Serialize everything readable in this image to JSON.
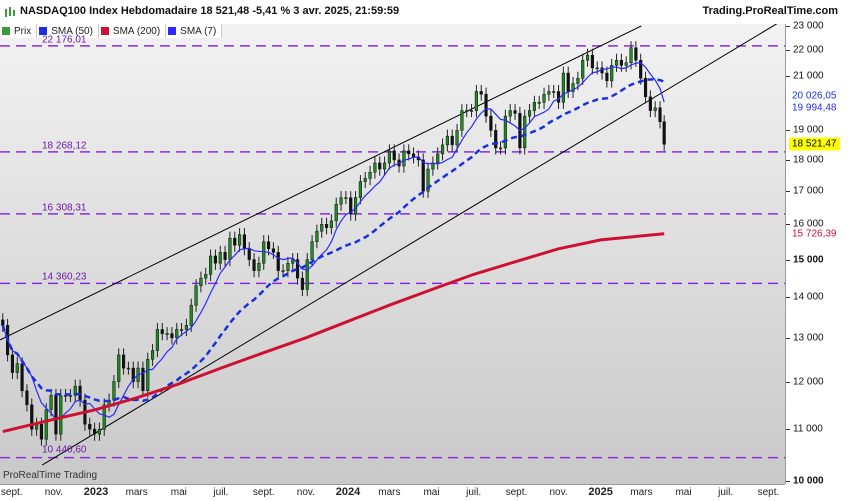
{
  "header": {
    "title": "NASDAQ100 Index Hebdomadaire 18 521,48 -5,41 % 3 avr. 2025, 21:59:59",
    "brand": "Trading.ProRealTime.com",
    "watermark": "ProRealTime Trading"
  },
  "colors": {
    "sma50": "#1a2fe0",
    "sma200": "#cc1133",
    "sma7": "#2a2aff",
    "level": "#8a2be2",
    "channel": "#000000",
    "candle_up": "#1f8a1f",
    "candle_down": "#111111"
  },
  "chart_data": {
    "type": "candlestick",
    "title": "NASDAQ100 Index Hebdomadaire 18 521,48 -5,41 % 3 avr. 2025, 21:59:59",
    "legend": [
      {
        "name": "Prix",
        "color": "#3a9a3a"
      },
      {
        "name": "SMA (50)",
        "color": "#1a2fe0"
      },
      {
        "name": "SMA (200)",
        "color": "#cc1133"
      },
      {
        "name": "SMA (7)",
        "color": "#2a2aff"
      }
    ],
    "legend_position": "top-left",
    "x_ticks": [
      {
        "label": "sept.",
        "date": "2022-09-01"
      },
      {
        "label": "nov.",
        "date": "2022-11-01"
      },
      {
        "label": "2023",
        "date": "2023-01-01",
        "year": true
      },
      {
        "label": "mars",
        "date": "2023-03-01"
      },
      {
        "label": "mai",
        "date": "2023-05-01"
      },
      {
        "label": "juil.",
        "date": "2023-07-01"
      },
      {
        "label": "sept.",
        "date": "2023-09-01"
      },
      {
        "label": "nov.",
        "date": "2023-11-01"
      },
      {
        "label": "2024",
        "date": "2024-01-01",
        "year": true
      },
      {
        "label": "mars",
        "date": "2024-03-01"
      },
      {
        "label": "mai",
        "date": "2024-05-01"
      },
      {
        "label": "juil.",
        "date": "2024-07-01"
      },
      {
        "label": "sept.",
        "date": "2024-09-01"
      },
      {
        "label": "nov.",
        "date": "2024-11-01"
      },
      {
        "label": "2025",
        "date": "2025-01-01",
        "year": true
      },
      {
        "label": "mars",
        "date": "2025-03-01"
      },
      {
        "label": "mai",
        "date": "2025-05-01"
      },
      {
        "label": "juil.",
        "date": "2025-07-01"
      },
      {
        "label": "sept.",
        "date": "2025-09-01"
      }
    ],
    "y_ticks": [
      {
        "label": "23 000",
        "value": 23000
      },
      {
        "label": "22 000",
        "value": 22000
      },
      {
        "label": "21 000",
        "value": 21000
      },
      {
        "label": "19 000",
        "value": 19000
      },
      {
        "label": "18 000",
        "value": 18000
      },
      {
        "label": "17 000",
        "value": 17000
      },
      {
        "label": "16 000",
        "value": 16000
      },
      {
        "label": "15 000",
        "value": 15000,
        "bold": true
      },
      {
        "label": "14 000",
        "value": 14000
      },
      {
        "label": "13 000",
        "value": 13000
      },
      {
        "label": "12 000",
        "value": 12000
      },
      {
        "label": "11 000",
        "value": 11000
      },
      {
        "label": "10 000",
        "value": 10000,
        "bold": true
      }
    ],
    "x_range": [
      "2022-08-15",
      "2025-09-25"
    ],
    "y_range": [
      9950,
      23080
    ],
    "y_scale": "log",
    "levels": [
      {
        "label": "22 176,01",
        "value": 22176.01
      },
      {
        "label": "18 268,12",
        "value": 18268.12
      },
      {
        "label": "16 308,31",
        "value": 16308.31
      },
      {
        "label": "14 360,23",
        "value": 14360.23
      },
      {
        "label": "10 440,60",
        "value": 10440.6
      }
    ],
    "value_tags": [
      {
        "label": "20 026,05",
        "value": 20026.05,
        "color": "#1a2fe0",
        "bg": "#ffffff"
      },
      {
        "label": "19 994,48",
        "value": 19994.48,
        "color": "#2a2aff",
        "bg": "#ffffff"
      },
      {
        "label": "18 521,47",
        "value": 18521.47,
        "color": "#000000",
        "bg": "#ffff00"
      },
      {
        "label": "15 726,39",
        "value": 15726.39,
        "color": "#cc1133",
        "bg": "#ffffff"
      }
    ],
    "channel_lines": [
      {
        "from": {
          "date": "2022-08-15",
          "value": 12950
        },
        "to": {
          "date": "2025-03-01",
          "value": 23000
        }
      },
      {
        "from": {
          "date": "2022-10-15",
          "value": 10300
        },
        "to": {
          "date": "2025-09-25",
          "value": 23300
        }
      }
    ],
    "close_series": [
      [
        "2022-08-19",
        13300
      ],
      [
        "2022-08-26",
        12600
      ],
      [
        "2022-09-02",
        12200
      ],
      [
        "2022-09-09",
        12400
      ],
      [
        "2022-09-16",
        11800
      ],
      [
        "2022-09-23",
        11500
      ],
      [
        "2022-09-30",
        11000
      ],
      [
        "2022-10-07",
        11100
      ],
      [
        "2022-10-14",
        10800
      ],
      [
        "2022-10-21",
        11400
      ],
      [
        "2022-10-28",
        11700
      ],
      [
        "2022-11-04",
        10900
      ],
      [
        "2022-11-11",
        11700
      ],
      [
        "2022-11-18",
        11700
      ],
      [
        "2022-11-25",
        11700
      ],
      [
        "2022-12-02",
        11900
      ],
      [
        "2022-12-09",
        11600
      ],
      [
        "2022-12-16",
        11100
      ],
      [
        "2022-12-23",
        11000
      ],
      [
        "2022-12-30",
        10900
      ],
      [
        "2023-01-06",
        11000
      ],
      [
        "2023-01-13",
        11500
      ],
      [
        "2023-01-20",
        11600
      ],
      [
        "2023-01-27",
        12000
      ],
      [
        "2023-02-03",
        12600
      ],
      [
        "2023-02-10",
        12300
      ],
      [
        "2023-02-17",
        12300
      ],
      [
        "2023-02-24",
        12000
      ],
      [
        "2023-03-03",
        12300
      ],
      [
        "2023-03-10",
        11800
      ],
      [
        "2023-03-17",
        12500
      ],
      [
        "2023-03-24",
        12700
      ],
      [
        "2023-03-31",
        13200
      ],
      [
        "2023-04-07",
        13100
      ],
      [
        "2023-04-14",
        13100
      ],
      [
        "2023-04-21",
        13000
      ],
      [
        "2023-04-28",
        13200
      ],
      [
        "2023-05-05",
        13200
      ],
      [
        "2023-05-12",
        13300
      ],
      [
        "2023-05-19",
        13800
      ],
      [
        "2023-05-26",
        14300
      ],
      [
        "2023-06-02",
        14500
      ],
      [
        "2023-06-09",
        14600
      ],
      [
        "2023-06-16",
        15100
      ],
      [
        "2023-06-23",
        14900
      ],
      [
        "2023-06-30",
        15200
      ],
      [
        "2023-07-07",
        15000
      ],
      [
        "2023-07-14",
        15600
      ],
      [
        "2023-07-21",
        15400
      ],
      [
        "2023-07-28",
        15700
      ],
      [
        "2023-08-04",
        15300
      ],
      [
        "2023-08-11",
        15000
      ],
      [
        "2023-08-18",
        14700
      ],
      [
        "2023-08-25",
        14900
      ],
      [
        "2023-09-01",
        15500
      ],
      [
        "2023-09-08",
        15300
      ],
      [
        "2023-09-15",
        15200
      ],
      [
        "2023-09-22",
        14700
      ],
      [
        "2023-09-29",
        14700
      ],
      [
        "2023-10-06",
        14900
      ],
      [
        "2023-10-13",
        15000
      ],
      [
        "2023-10-20",
        14500
      ],
      [
        "2023-10-27",
        14200
      ],
      [
        "2023-11-03",
        15000
      ],
      [
        "2023-11-10",
        15500
      ],
      [
        "2023-11-17",
        15800
      ],
      [
        "2023-11-24",
        16000
      ],
      [
        "2023-12-01",
        15900
      ],
      [
        "2023-12-08",
        16100
      ],
      [
        "2023-12-15",
        16600
      ],
      [
        "2023-12-22",
        16800
      ],
      [
        "2023-12-29",
        16800
      ],
      [
        "2024-01-05",
        16300
      ],
      [
        "2024-01-12",
        16800
      ],
      [
        "2024-01-19",
        17300
      ],
      [
        "2024-01-26",
        17400
      ],
      [
        "2024-02-02",
        17600
      ],
      [
        "2024-02-09",
        17900
      ],
      [
        "2024-02-16",
        17700
      ],
      [
        "2024-02-23",
        17900
      ],
      [
        "2024-03-01",
        18300
      ],
      [
        "2024-03-08",
        18000
      ],
      [
        "2024-03-15",
        17800
      ],
      [
        "2024-03-22",
        18300
      ],
      [
        "2024-03-29",
        18200
      ],
      [
        "2024-04-05",
        18100
      ],
      [
        "2024-04-12",
        18000
      ],
      [
        "2024-04-19",
        17000
      ],
      [
        "2024-04-26",
        17700
      ],
      [
        "2024-05-03",
        17900
      ],
      [
        "2024-05-10",
        18200
      ],
      [
        "2024-05-17",
        18500
      ],
      [
        "2024-05-24",
        18800
      ],
      [
        "2024-05-31",
        18500
      ],
      [
        "2024-06-07",
        19000
      ],
      [
        "2024-06-14",
        19700
      ],
      [
        "2024-06-21",
        19700
      ],
      [
        "2024-06-28",
        19700
      ],
      [
        "2024-07-05",
        20400
      ],
      [
        "2024-07-12",
        20300
      ],
      [
        "2024-07-19",
        19500
      ],
      [
        "2024-07-26",
        19000
      ],
      [
        "2024-08-02",
        18400
      ],
      [
        "2024-08-09",
        18400
      ],
      [
        "2024-08-16",
        19500
      ],
      [
        "2024-08-23",
        19700
      ],
      [
        "2024-08-30",
        19600
      ],
      [
        "2024-09-06",
        18400
      ],
      [
        "2024-09-13",
        19500
      ],
      [
        "2024-09-20",
        19700
      ],
      [
        "2024-09-27",
        20000
      ],
      [
        "2024-10-04",
        20000
      ],
      [
        "2024-10-11",
        20300
      ],
      [
        "2024-10-18",
        20400
      ],
      [
        "2024-10-25",
        20400
      ],
      [
        "2024-11-01",
        20000
      ],
      [
        "2024-11-08",
        21100
      ],
      [
        "2024-11-15",
        20400
      ],
      [
        "2024-11-22",
        20700
      ],
      [
        "2024-11-29",
        20900
      ],
      [
        "2024-12-06",
        21600
      ],
      [
        "2024-12-13",
        21800
      ],
      [
        "2024-12-20",
        21300
      ],
      [
        "2024-12-27",
        21300
      ],
      [
        "2025-01-03",
        21100
      ],
      [
        "2025-01-10",
        20800
      ],
      [
        "2025-01-17",
        21400
      ],
      [
        "2025-01-24",
        21600
      ],
      [
        "2025-01-31",
        21400
      ],
      [
        "2025-02-07",
        21500
      ],
      [
        "2025-02-14",
        22100
      ],
      [
        "2025-02-21",
        21600
      ],
      [
        "2025-02-28",
        20900
      ],
      [
        "2025-03-07",
        20200
      ],
      [
        "2025-03-14",
        19700
      ],
      [
        "2025-03-21",
        19800
      ],
      [
        "2025-03-28",
        19300
      ],
      [
        "2025-04-03",
        18521.47
      ]
    ],
    "sma200_series": [
      [
        "2022-08-19",
        10950
      ],
      [
        "2022-11-01",
        11200
      ],
      [
        "2023-01-01",
        11400
      ],
      [
        "2023-03-01",
        11650
      ],
      [
        "2023-05-01",
        11950
      ],
      [
        "2023-07-01",
        12300
      ],
      [
        "2023-09-01",
        12650
      ],
      [
        "2023-11-01",
        13000
      ],
      [
        "2024-01-01",
        13400
      ],
      [
        "2024-03-01",
        13800
      ],
      [
        "2024-05-01",
        14200
      ],
      [
        "2024-07-01",
        14600
      ],
      [
        "2024-09-01",
        14950
      ],
      [
        "2024-11-01",
        15300
      ],
      [
        "2025-01-01",
        15550
      ],
      [
        "2025-04-03",
        15726.39
      ]
    ]
  }
}
